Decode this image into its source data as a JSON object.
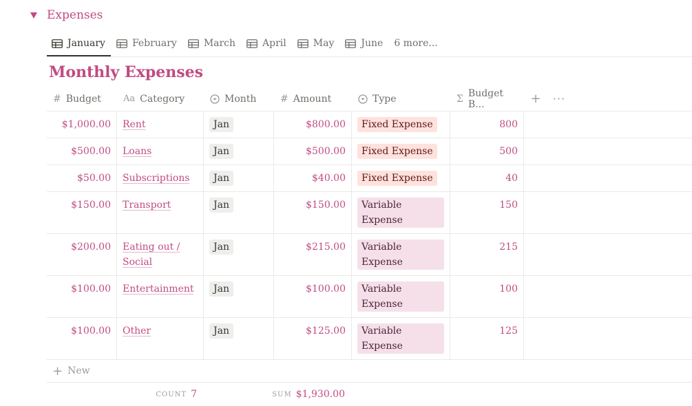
{
  "section": {
    "title": "Expenses"
  },
  "tabs": [
    {
      "label": "January",
      "icon": "table-icon",
      "active": true
    },
    {
      "label": "February",
      "icon": "table-icon"
    },
    {
      "label": "March",
      "icon": "table-icon"
    },
    {
      "label": "April",
      "icon": "table-icon"
    },
    {
      "label": "May",
      "icon": "table-icon"
    },
    {
      "label": "June",
      "icon": "table-icon"
    },
    {
      "label": "6 more..."
    }
  ],
  "database": {
    "title": "Monthly Expenses"
  },
  "columns": [
    {
      "label": "Budget",
      "icon": "number-icon"
    },
    {
      "label": "Category",
      "icon": "text-icon",
      "icon_text": "Aa"
    },
    {
      "label": "Month",
      "icon": "select-icon"
    },
    {
      "label": "Amount",
      "icon": "number-icon"
    },
    {
      "label": "Type",
      "icon": "select-icon"
    },
    {
      "label": "Budget B...",
      "icon": "formula-icon"
    }
  ],
  "rows": [
    {
      "budget": "$1,000.00",
      "category": "Rent",
      "month": "Jan",
      "amount": "$800.00",
      "type": "Fixed Expense",
      "budget_b": "800"
    },
    {
      "budget": "$500.00",
      "category": "Loans",
      "month": "Jan",
      "amount": "$500.00",
      "type": "Fixed Expense",
      "budget_b": "500"
    },
    {
      "budget": "$50.00",
      "category": "Subscriptions",
      "month": "Jan",
      "amount": "$40.00",
      "type": "Fixed Expense",
      "budget_b": "40"
    },
    {
      "budget": "$150.00",
      "category": "Transport",
      "month": "Jan",
      "amount": "$150.00",
      "type": "Variable Expense",
      "budget_b": "150"
    },
    {
      "budget": "$200.00",
      "category": "Eating out / Social",
      "month": "Jan",
      "amount": "$215.00",
      "type": "Variable Expense",
      "budget_b": "215"
    },
    {
      "budget": "$100.00",
      "category": "Entertainment",
      "month": "Jan",
      "amount": "$100.00",
      "type": "Variable Expense",
      "budget_b": "100"
    },
    {
      "budget": "$100.00",
      "category": "Other",
      "month": "Jan",
      "amount": "$125.00",
      "type": "Variable Expense",
      "budget_b": "125"
    }
  ],
  "new_row_label": "New",
  "footer": {
    "count_label": "COUNT",
    "count_value": "7",
    "sum_label": "SUM",
    "sum_value": "$1,930.00"
  },
  "colors": {
    "accent": "#c14b82",
    "fixed_bg": "#ffe2dd",
    "variable_bg": "#f5e0e9",
    "month_bg": "#eeeeed"
  }
}
